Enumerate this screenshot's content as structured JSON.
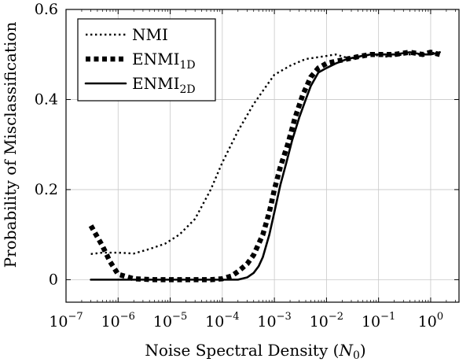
{
  "chart_data": {
    "type": "line",
    "title": "",
    "xlabel": "Noise Spectral Density (N0)",
    "xlabel_parts": {
      "text": "Noise Spectral Density (",
      "math": "N",
      "sub": "0",
      "close": ")"
    },
    "ylabel": "Probability of Misclassification",
    "xscale": "log",
    "xlim": [
      1e-07,
      3.5
    ],
    "ylim": [
      -0.05,
      0.6
    ],
    "x_ticks": [
      {
        "base": "10",
        "exp": "−7",
        "value": 1e-07
      },
      {
        "base": "10",
        "exp": "−6",
        "value": 1e-06
      },
      {
        "base": "10",
        "exp": "−5",
        "value": 1e-05
      },
      {
        "base": "10",
        "exp": "−4",
        "value": 0.0001
      },
      {
        "base": "10",
        "exp": "−3",
        "value": 0.001
      },
      {
        "base": "10",
        "exp": "−2",
        "value": 0.01
      },
      {
        "base": "10",
        "exp": "−1",
        "value": 0.1
      },
      {
        "base": "10",
        "exp": "0",
        "value": 1
      }
    ],
    "y_ticks": [
      {
        "label": "0",
        "value": 0
      },
      {
        "label": "0.2",
        "value": 0.2
      },
      {
        "label": "0.4",
        "value": 0.4
      },
      {
        "label": "0.6",
        "value": 0.6
      }
    ],
    "grid": true,
    "legend_position": "top-left",
    "series": [
      {
        "name": "NMI",
        "name_base": "NMI",
        "name_sub": "",
        "style": "dotted",
        "x": [
          3e-07,
          5e-07,
          1e-06,
          2e-06,
          4e-06,
          8e-06,
          1.5e-05,
          3e-05,
          6e-05,
          0.0001,
          0.0002,
          0.0004,
          0.0007,
          0.001,
          0.002,
          0.004,
          0.008,
          0.015,
          0.03,
          0.07,
          0.15,
          0.3,
          0.6,
          1.0,
          1.5
        ],
        "y": [
          0.057,
          0.06,
          0.06,
          0.058,
          0.068,
          0.08,
          0.1,
          0.135,
          0.2,
          0.26,
          0.33,
          0.39,
          0.43,
          0.455,
          0.475,
          0.49,
          0.495,
          0.5,
          0.49,
          0.5,
          0.495,
          0.5,
          0.5,
          0.505,
          0.5
        ]
      },
      {
        "name": "ENMI1D",
        "name_base": "ENMI",
        "name_sub": "1D",
        "style": "thick-dashed",
        "x": [
          3e-07,
          5e-07,
          7e-07,
          1e-06,
          2e-06,
          5e-06,
          1e-05,
          3e-05,
          6e-05,
          0.0001,
          0.00015,
          0.0002,
          0.0003,
          0.0004,
          0.0006,
          0.0008,
          0.001,
          0.0013,
          0.0018,
          0.0025,
          0.0035,
          0.005,
          0.007,
          0.01,
          0.015,
          0.025,
          0.04,
          0.07,
          0.1,
          0.2,
          0.4,
          0.7,
          1.0,
          1.5
        ],
        "y": [
          0.12,
          0.075,
          0.04,
          0.012,
          0.002,
          0.0,
          0.0,
          0.0,
          0.0,
          0.002,
          0.008,
          0.018,
          0.035,
          0.055,
          0.1,
          0.15,
          0.2,
          0.25,
          0.3,
          0.36,
          0.41,
          0.45,
          0.47,
          0.48,
          0.485,
          0.49,
          0.495,
          0.5,
          0.5,
          0.5,
          0.505,
          0.5,
          0.505,
          0.5
        ]
      },
      {
        "name": "ENMI2D",
        "name_base": "ENMI",
        "name_sub": "2D",
        "style": "solid",
        "x": [
          3e-07,
          1e-06,
          1e-05,
          0.0001,
          0.0002,
          0.0003,
          0.0004,
          0.0005,
          0.0006,
          0.0008,
          0.001,
          0.0013,
          0.0017,
          0.0022,
          0.003,
          0.004,
          0.005,
          0.007,
          0.01,
          0.015,
          0.025,
          0.04,
          0.07,
          0.1,
          0.2,
          0.4,
          0.7,
          1.0,
          1.5
        ],
        "y": [
          0.0,
          0.0,
          0.0,
          0.0,
          0.0,
          0.005,
          0.015,
          0.03,
          0.05,
          0.1,
          0.15,
          0.21,
          0.26,
          0.31,
          0.36,
          0.4,
          0.43,
          0.46,
          0.47,
          0.48,
          0.49,
          0.495,
          0.5,
          0.5,
          0.5,
          0.505,
          0.5,
          0.5,
          0.505
        ]
      }
    ]
  }
}
